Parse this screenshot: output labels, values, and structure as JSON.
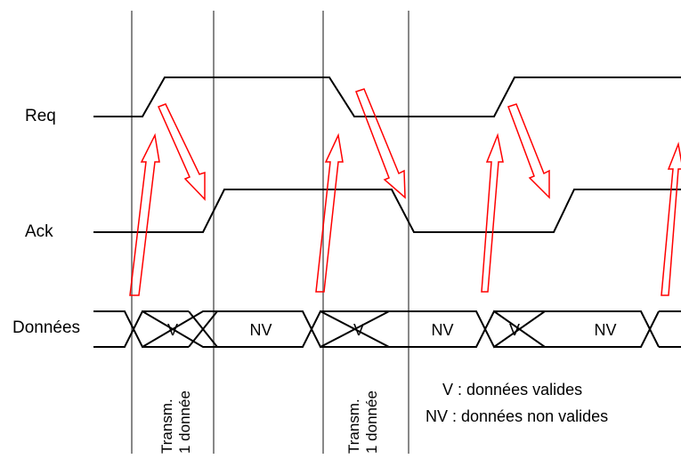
{
  "signals": {
    "req": "Req",
    "ack": "Ack",
    "data": "Données"
  },
  "data_segments": [
    "V",
    "NV",
    "V",
    "NV",
    "V",
    "NV"
  ],
  "transmission_labels": [
    {
      "line1": "Transm.",
      "line2": "1 donnée"
    },
    {
      "line1": "Transm.",
      "line2": "1 donnée"
    }
  ],
  "legend": {
    "v": "V : données valides",
    "nv": "NV : données non valides"
  },
  "colors": {
    "signal": "#000000",
    "gridline": "#888888",
    "arrow": "#ff0000"
  }
}
